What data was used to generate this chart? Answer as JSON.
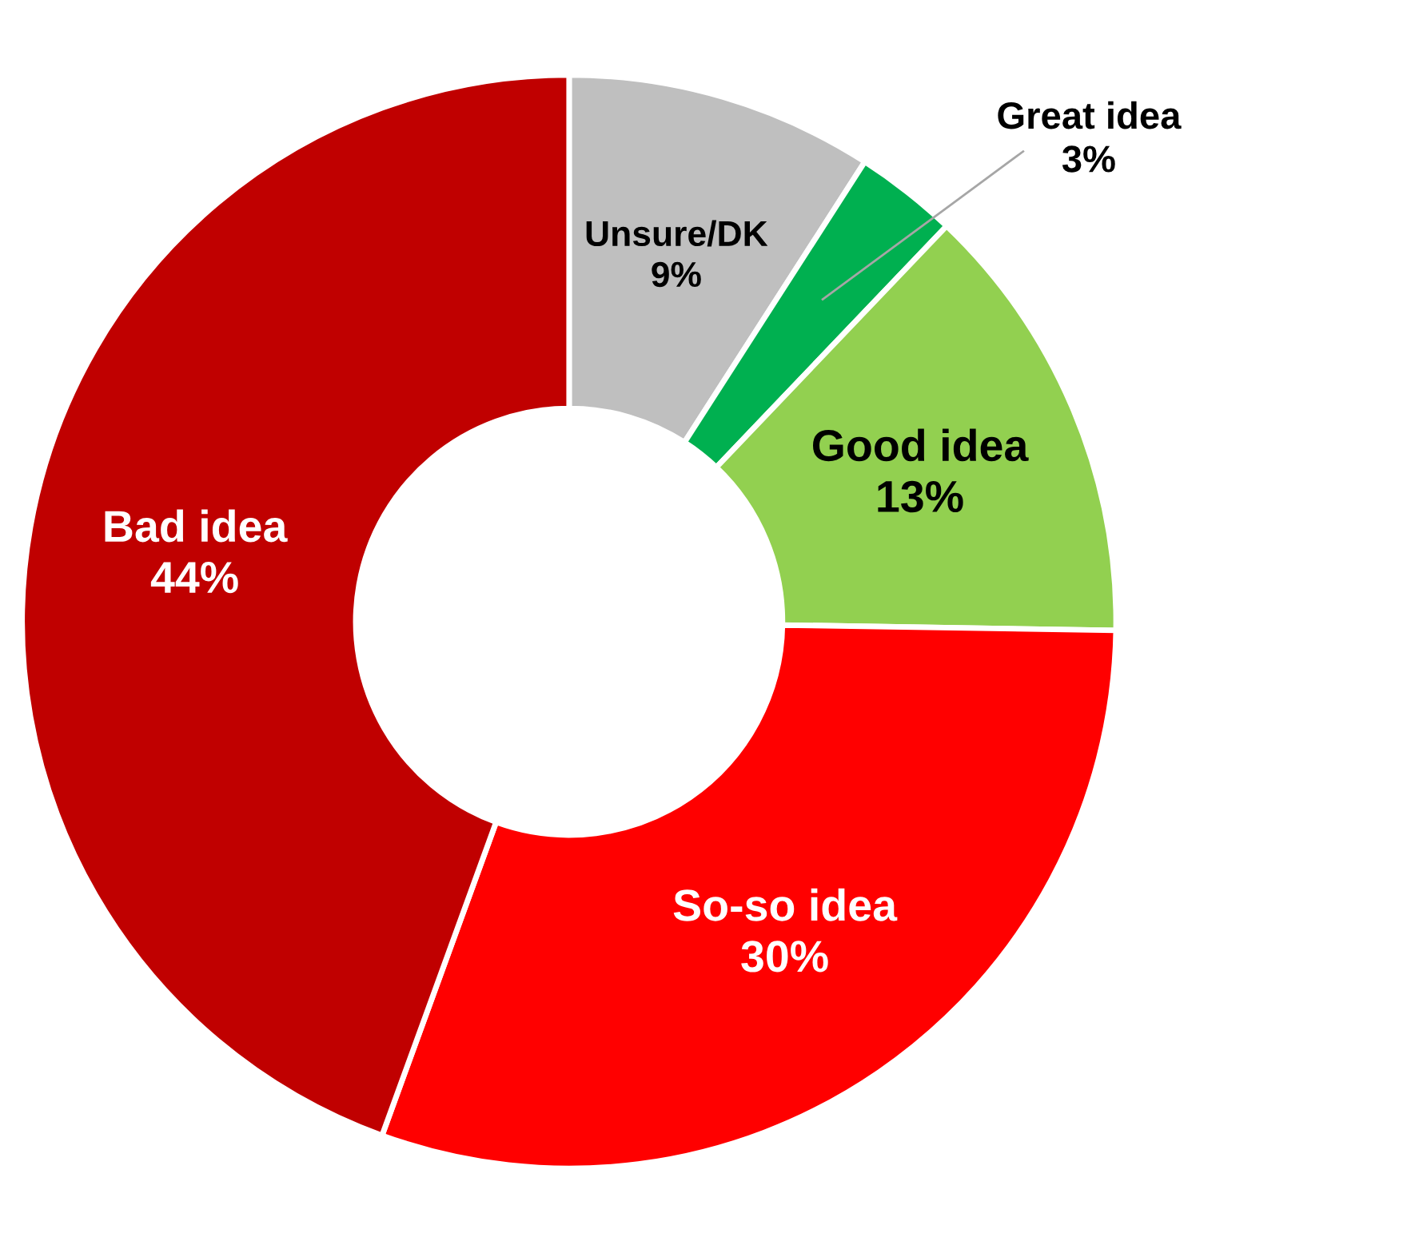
{
  "chart_data": {
    "type": "donut",
    "categories": [
      "Unsure/DK",
      "Great idea",
      "Good idea",
      "So-so idea",
      "Bad idea"
    ],
    "values": [
      9,
      3,
      13,
      30,
      44
    ],
    "colors": [
      "#bfbfbf",
      "#00b050",
      "#92d050",
      "#ff0000",
      "#c00000"
    ],
    "value_labels": [
      "9%",
      "3%",
      "13%",
      "30%",
      "44%"
    ],
    "legend": false
  }
}
